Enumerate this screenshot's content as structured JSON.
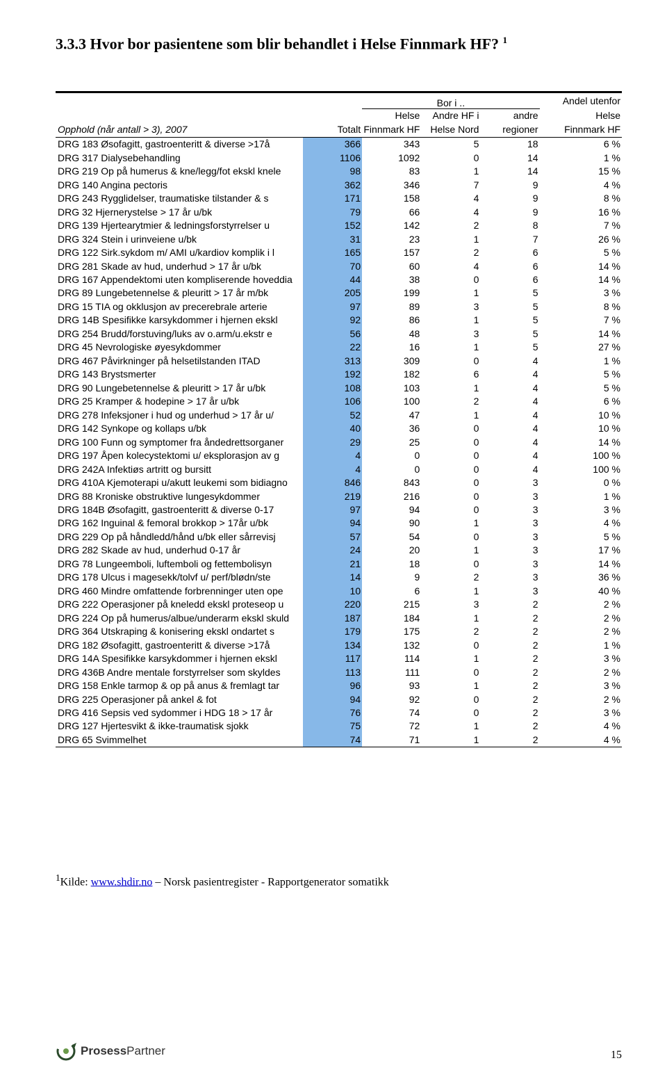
{
  "page": {
    "heading": "3.3.3 Hvor bor pasientene som blir behandlet i Helse Finnmark HF?",
    "footnote_prefix": "Kilde: ",
    "footnote_link_text": "www.shdir.no",
    "footnote_suffix": " – Norsk pasientregister - Rapportgenerator somatikk",
    "logo_text_1": "Prosess",
    "logo_text_2": "Partner",
    "page_number": "15"
  },
  "table": {
    "spanning_header": "Bor i ..",
    "col_headers": {
      "c0a": "",
      "c0b": "Opphold (når antall > 3), 2007",
      "c1": "Totalt",
      "c2a": "Helse",
      "c2b": "Finnmark HF",
      "c3a": "Andre HF i",
      "c3b": "Helse Nord",
      "c4a": "andre",
      "c4b": "regioner",
      "c5a": "Andel utenfor",
      "c5b": "Helse",
      "c5c": "Finnmark HF"
    },
    "rows": [
      {
        "label": "DRG 183 Øsofagitt, gastroenteritt & diverse >17å",
        "totalt": "366",
        "c2": "343",
        "c3": "5",
        "c4": "18",
        "pct": "6 %"
      },
      {
        "label": "DRG 317 Dialysebehandling",
        "totalt": "1106",
        "c2": "1092",
        "c3": "0",
        "c4": "14",
        "pct": "1 %"
      },
      {
        "label": "DRG 219 Op på humerus & kne/legg/fot ekskl knele",
        "totalt": "98",
        "c2": "83",
        "c3": "1",
        "c4": "14",
        "pct": "15 %"
      },
      {
        "label": "DRG 140 Angina pectoris",
        "totalt": "362",
        "c2": "346",
        "c3": "7",
        "c4": "9",
        "pct": "4 %"
      },
      {
        "label": "DRG 243 Rygglidelser, traumatiske tilstander & s",
        "totalt": "171",
        "c2": "158",
        "c3": "4",
        "c4": "9",
        "pct": "8 %"
      },
      {
        "label": "DRG 32 Hjernerystelse > 17 år u/bk",
        "totalt": "79",
        "c2": "66",
        "c3": "4",
        "c4": "9",
        "pct": "16 %"
      },
      {
        "label": "DRG 139 Hjertearytmier & ledningsforstyrrelser u",
        "totalt": "152",
        "c2": "142",
        "c3": "2",
        "c4": "8",
        "pct": "7 %"
      },
      {
        "label": "DRG 324 Stein i urinveiene u/bk",
        "totalt": "31",
        "c2": "23",
        "c3": "1",
        "c4": "7",
        "pct": "26 %"
      },
      {
        "label": "DRG 122 Sirk.sykdom m/ AMI u/kardiov komplik i l",
        "totalt": "165",
        "c2": "157",
        "c3": "2",
        "c4": "6",
        "pct": "5 %"
      },
      {
        "label": "DRG 281 Skade av hud, underhud > 17 år u/bk",
        "totalt": "70",
        "c2": "60",
        "c3": "4",
        "c4": "6",
        "pct": "14 %"
      },
      {
        "label": "DRG 167 Appendektomi uten kompliserende hoveddia",
        "totalt": "44",
        "c2": "38",
        "c3": "0",
        "c4": "6",
        "pct": "14 %"
      },
      {
        "label": "DRG 89 Lungebetennelse & pleuritt > 17 år m/bk",
        "totalt": "205",
        "c2": "199",
        "c3": "1",
        "c4": "5",
        "pct": "3 %"
      },
      {
        "label": "DRG 15 TIA og okklusjon av precerebrale arterie",
        "totalt": "97",
        "c2": "89",
        "c3": "3",
        "c4": "5",
        "pct": "8 %"
      },
      {
        "label": "DRG 14B Spesifikke karsykdommer i hjernen ekskl",
        "totalt": "92",
        "c2": "86",
        "c3": "1",
        "c4": "5",
        "pct": "7 %"
      },
      {
        "label": "DRG 254 Brudd/forstuving/luks av o.arm/u.ekstr e",
        "totalt": "56",
        "c2": "48",
        "c3": "3",
        "c4": "5",
        "pct": "14 %"
      },
      {
        "label": "DRG 45 Nevrologiske øyesykdommer",
        "totalt": "22",
        "c2": "16",
        "c3": "1",
        "c4": "5",
        "pct": "27 %"
      },
      {
        "label": "DRG 467 Påvirkninger på helsetilstanden ITAD",
        "totalt": "313",
        "c2": "309",
        "c3": "0",
        "c4": "4",
        "pct": "1 %"
      },
      {
        "label": "DRG 143 Brystsmerter",
        "totalt": "192",
        "c2": "182",
        "c3": "6",
        "c4": "4",
        "pct": "5 %"
      },
      {
        "label": "DRG 90 Lungebetennelse & pleuritt > 17 år u/bk",
        "totalt": "108",
        "c2": "103",
        "c3": "1",
        "c4": "4",
        "pct": "5 %"
      },
      {
        "label": "DRG 25 Kramper & hodepine > 17 år u/bk",
        "totalt": "106",
        "c2": "100",
        "c3": "2",
        "c4": "4",
        "pct": "6 %"
      },
      {
        "label": "DRG 278 Infeksjoner i hud og underhud > 17 år u/",
        "totalt": "52",
        "c2": "47",
        "c3": "1",
        "c4": "4",
        "pct": "10 %"
      },
      {
        "label": "DRG 142 Synkope og kollaps u/bk",
        "totalt": "40",
        "c2": "36",
        "c3": "0",
        "c4": "4",
        "pct": "10 %"
      },
      {
        "label": "DRG 100 Funn og symptomer fra åndedrettsorganer",
        "totalt": "29",
        "c2": "25",
        "c3": "0",
        "c4": "4",
        "pct": "14 %"
      },
      {
        "label": "DRG 197 Åpen kolecystektomi u/ eksplorasjon av g",
        "totalt": "4",
        "c2": "0",
        "c3": "0",
        "c4": "4",
        "pct": "100 %"
      },
      {
        "label": "DRG 242A Infektiøs artritt og bursitt",
        "totalt": "4",
        "c2": "0",
        "c3": "0",
        "c4": "4",
        "pct": "100 %"
      },
      {
        "label": "DRG 410A Kjemoterapi u/akutt leukemi som bidiagno",
        "totalt": "846",
        "c2": "843",
        "c3": "0",
        "c4": "3",
        "pct": "0 %"
      },
      {
        "label": "DRG 88 Kroniske obstruktive lungesykdommer",
        "totalt": "219",
        "c2": "216",
        "c3": "0",
        "c4": "3",
        "pct": "1 %"
      },
      {
        "label": "DRG 184B Øsofagitt, gastroenteritt & diverse 0-17",
        "totalt": "97",
        "c2": "94",
        "c3": "0",
        "c4": "3",
        "pct": "3 %"
      },
      {
        "label": "DRG 162 Inguinal & femoral brokkop > 17år u/bk",
        "totalt": "94",
        "c2": "90",
        "c3": "1",
        "c4": "3",
        "pct": "4 %"
      },
      {
        "label": "DRG 229 Op på håndledd/hånd u/bk eller sårrevisj",
        "totalt": "57",
        "c2": "54",
        "c3": "0",
        "c4": "3",
        "pct": "5 %"
      },
      {
        "label": "DRG 282 Skade av hud, underhud 0-17 år",
        "totalt": "24",
        "c2": "20",
        "c3": "1",
        "c4": "3",
        "pct": "17 %"
      },
      {
        "label": "DRG 78 Lungeemboli, luftemboli og fettembolisyn",
        "totalt": "21",
        "c2": "18",
        "c3": "0",
        "c4": "3",
        "pct": "14 %"
      },
      {
        "label": "DRG 178 Ulcus i magesekk/tolvf u/ perf/blødn/ste",
        "totalt": "14",
        "c2": "9",
        "c3": "2",
        "c4": "3",
        "pct": "36 %"
      },
      {
        "label": "DRG 460 Mindre omfattende forbrenninger uten ope",
        "totalt": "10",
        "c2": "6",
        "c3": "1",
        "c4": "3",
        "pct": "40 %"
      },
      {
        "label": "DRG 222 Operasjoner på kneledd ekskl proteseop u",
        "totalt": "220",
        "c2": "215",
        "c3": "3",
        "c4": "2",
        "pct": "2 %"
      },
      {
        "label": "DRG 224 Op på humerus/albue/underarm ekskl skuld",
        "totalt": "187",
        "c2": "184",
        "c3": "1",
        "c4": "2",
        "pct": "2 %"
      },
      {
        "label": "DRG 364 Utskraping & konisering ekskl ondartet s",
        "totalt": "179",
        "c2": "175",
        "c3": "2",
        "c4": "2",
        "pct": "2 %"
      },
      {
        "label": "DRG 182 Øsofagitt, gastroenteritt & diverse >17å",
        "totalt": "134",
        "c2": "132",
        "c3": "0",
        "c4": "2",
        "pct": "1 %"
      },
      {
        "label": "DRG 14A Spesifikke karsykdommer i hjernen ekskl",
        "totalt": "117",
        "c2": "114",
        "c3": "1",
        "c4": "2",
        "pct": "3 %"
      },
      {
        "label": "DRG 436B Andre mentale forstyrrelser som skyldes",
        "totalt": "113",
        "c2": "111",
        "c3": "0",
        "c4": "2",
        "pct": "2 %"
      },
      {
        "label": "DRG 158 Enkle tarmop & op på anus & fremlagt tar",
        "totalt": "96",
        "c2": "93",
        "c3": "1",
        "c4": "2",
        "pct": "3 %"
      },
      {
        "label": "DRG 225 Operasjoner på ankel & fot",
        "totalt": "94",
        "c2": "92",
        "c3": "0",
        "c4": "2",
        "pct": "2 %"
      },
      {
        "label": "DRG 416 Sepsis ved sydommer i HDG 18 > 17 år",
        "totalt": "76",
        "c2": "74",
        "c3": "0",
        "c4": "2",
        "pct": "3 %"
      },
      {
        "label": "DRG 127 Hjertesvikt & ikke-traumatisk sjokk",
        "totalt": "75",
        "c2": "72",
        "c3": "1",
        "c4": "2",
        "pct": "4 %"
      },
      {
        "label": "DRG 65 Svimmelhet",
        "totalt": "74",
        "c2": "71",
        "c3": "1",
        "c4": "2",
        "pct": "4 %"
      }
    ],
    "highlight_color": "#87b8e8"
  }
}
